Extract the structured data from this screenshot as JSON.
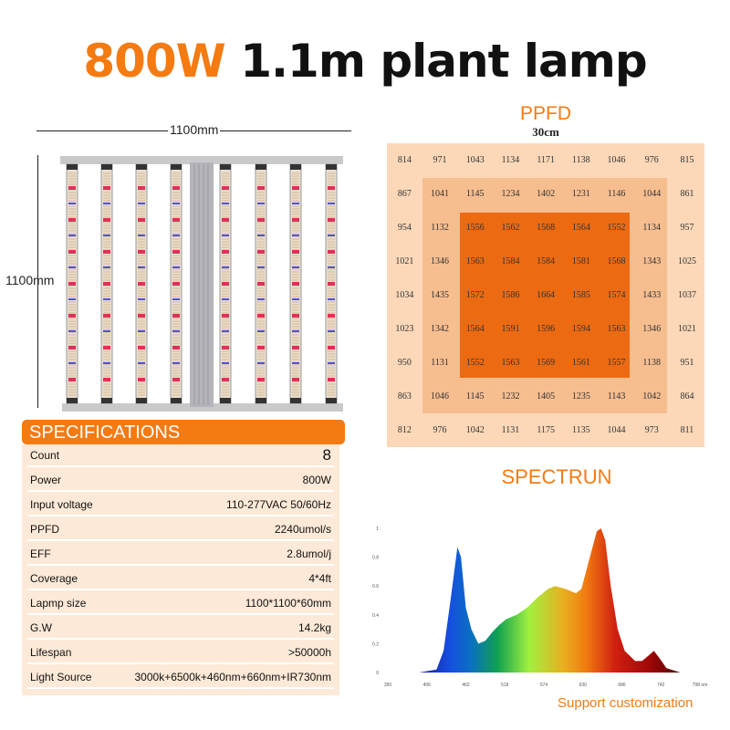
{
  "title": {
    "highlight": "800W",
    "rest": " 1.1m plant lamp"
  },
  "lamp": {
    "width_label": "1100mm",
    "height_label": "1100mm",
    "bar_count": 8
  },
  "ppfd": {
    "title": "PPFD",
    "subtitle": "30cm",
    "grid": [
      [
        814,
        971,
        1043,
        1134,
        1171,
        1138,
        1046,
        976,
        815
      ],
      [
        867,
        1041,
        1145,
        1234,
        1402,
        1231,
        1146,
        1044,
        861
      ],
      [
        954,
        1132,
        1556,
        1562,
        1568,
        1564,
        1552,
        1134,
        957
      ],
      [
        1021,
        1346,
        1563,
        1584,
        1584,
        1581,
        1568,
        1343,
        1025
      ],
      [
        1034,
        1435,
        1572,
        1586,
        1664,
        1585,
        1574,
        1433,
        1037
      ],
      [
        1023,
        1342,
        1564,
        1591,
        1596,
        1594,
        1563,
        1346,
        1021
      ],
      [
        950,
        1131,
        1552,
        1563,
        1569,
        1561,
        1557,
        1138,
        951
      ],
      [
        863,
        1046,
        1145,
        1232,
        1405,
        1235,
        1143,
        1042,
        864
      ],
      [
        812,
        976,
        1042,
        1131,
        1175,
        1135,
        1044,
        973,
        811
      ]
    ],
    "colors": {
      "outer": "#fcd8b8",
      "middle": "#f6bd8f",
      "inner": "#ec6a12"
    }
  },
  "specs": {
    "title": "SPECIFICATIONS",
    "rows": [
      {
        "k": "Count",
        "v": "8"
      },
      {
        "k": "Power",
        "v": "800W"
      },
      {
        "k": "Input voltage",
        "v": "110-277VAC 50/60Hz"
      },
      {
        "k": "PPFD",
        "v": "2240umol/s"
      },
      {
        "k": "EFF",
        "v": "2.8umol/j"
      },
      {
        "k": "Coverage",
        "v": "4*4ft"
      },
      {
        "k": "Lapmp size",
        "v": "1100*1100*60mm"
      },
      {
        "k": "G.W",
        "v": "14.2kg"
      },
      {
        "k": "Lifespan",
        "v": ">50000h"
      },
      {
        "k": "Light Source",
        "v": "3000k+6500k+460nm+660nm+IR730nm"
      }
    ]
  },
  "spectrum_title": "SPECTRUN",
  "support": "Support customization",
  "chart_data": {
    "type": "area",
    "xunit": "nm",
    "xticks": [
      "350",
      "406",
      "462",
      "518",
      "574",
      "630",
      "686",
      "742",
      "798 nm"
    ],
    "yticks": [
      "0",
      "0.2",
      "0.4",
      "0.6",
      "0.8",
      "1"
    ],
    "xlim": [
      350,
      798
    ],
    "ylim": [
      0,
      1
    ],
    "x": [
      395,
      420,
      430,
      440,
      450,
      455,
      462,
      470,
      480,
      490,
      500,
      510,
      520,
      535,
      550,
      565,
      580,
      590,
      605,
      620,
      628,
      640,
      650,
      656,
      662,
      670,
      680,
      690,
      705,
      715,
      725,
      732,
      740,
      750,
      770
    ],
    "y": [
      0,
      0.02,
      0.15,
      0.5,
      0.87,
      0.8,
      0.45,
      0.3,
      0.2,
      0.22,
      0.28,
      0.33,
      0.37,
      0.4,
      0.45,
      0.52,
      0.58,
      0.6,
      0.58,
      0.55,
      0.58,
      0.8,
      0.98,
      1.0,
      0.92,
      0.6,
      0.3,
      0.15,
      0.08,
      0.08,
      0.12,
      0.15,
      0.1,
      0.03,
      0
    ]
  }
}
